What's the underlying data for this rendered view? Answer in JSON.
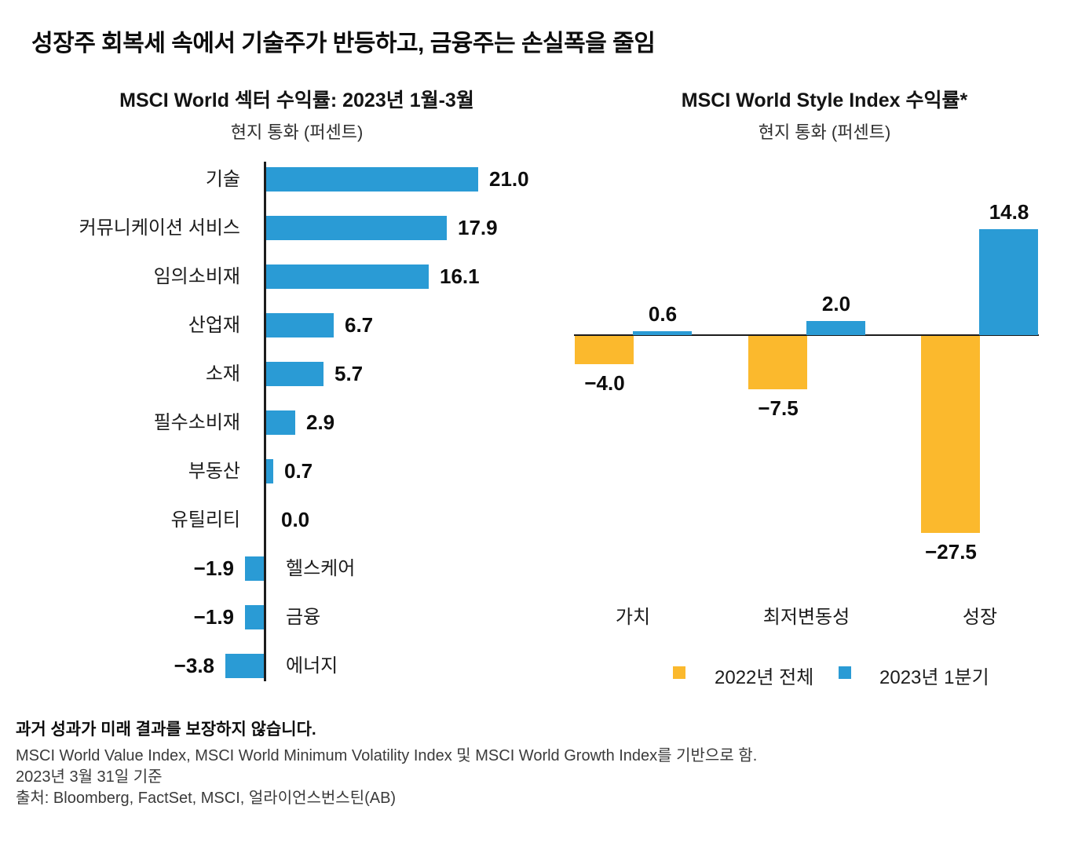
{
  "page": {
    "title": "성장주 회복세 속에서 기술주가 반등하고, 금융주는 손실폭을 줄임",
    "footnote_bold": "과거 성과가 미래 결과를 보장하지 않습니다.",
    "footnote_lines": [
      "MSCI World Value Index, MSCI World Minimum Volatility Index 및 MSCI World Growth Index를 기반으로 함.",
      "2023년 3월 31일 기준",
      "출처: Bloomberg, FactSet, MSCI, 얼라이언스번스틴(AB)"
    ]
  },
  "colors": {
    "blue": "#2A9BD5",
    "yellow": "#FBB92D",
    "axis": "#1c1c1c"
  },
  "chart_data": [
    {
      "type": "bar",
      "orientation": "horizontal",
      "title": "MSCI World 섹터 수익률: 2023년 1월-3월",
      "subtitle": "현지 통화 (퍼센트)",
      "categories": [
        "기술",
        "커뮤니케이션 서비스",
        "임의소비재",
        "산업재",
        "소재",
        "필수소비재",
        "부동산",
        "유틸리티",
        "헬스케어",
        "금융",
        "에너지"
      ],
      "values": [
        21.0,
        17.9,
        16.1,
        6.7,
        5.7,
        2.9,
        0.7,
        0.0,
        -1.9,
        -1.9,
        -3.8
      ],
      "value_labels": [
        "21.0",
        "17.9",
        "16.1",
        "6.7",
        "5.7",
        "2.9",
        "0.7",
        "0.0",
        "−1.9",
        "−1.9",
        "−3.8"
      ],
      "bar_color": "#2A9BD5",
      "xlim": [
        -5,
        23
      ],
      "grid": false,
      "value_labels_shown": true
    },
    {
      "type": "bar",
      "orientation": "vertical",
      "title": "MSCI World Style Index 수익률*",
      "subtitle": "현지 통화 (퍼센트)",
      "categories": [
        "가치",
        "최저변동성",
        "성장"
      ],
      "series": [
        {
          "name": "2022년 전체",
          "color": "#FBB92D",
          "values": [
            -4.0,
            -7.5,
            -27.5
          ],
          "value_labels": [
            "−4.0",
            "−7.5",
            "−27.5"
          ]
        },
        {
          "name": "2023년 1분기",
          "color": "#2A9BD5",
          "values": [
            0.6,
            2.0,
            14.8
          ],
          "value_labels": [
            "0.6",
            "2.0",
            "14.8"
          ]
        }
      ],
      "ylim": [
        -30,
        16
      ],
      "grid": false,
      "legend_position": "bottom",
      "value_labels_shown": true
    }
  ]
}
